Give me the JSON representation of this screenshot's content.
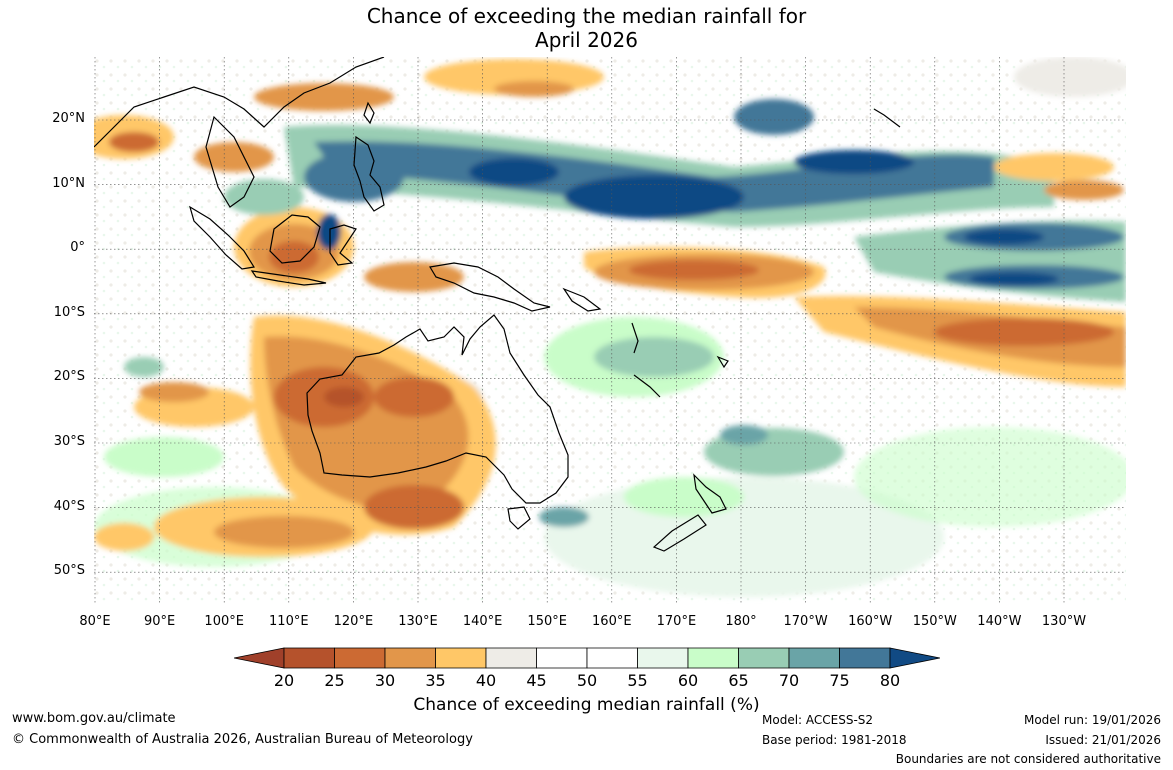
{
  "title": {
    "line1": "Chance of exceeding the median rainfall for",
    "line2": "April 2026"
  },
  "lat_labels": [
    "20°N",
    "10°N",
    "0°",
    "10°S",
    "20°S",
    "30°S",
    "40°S",
    "50°S"
  ],
  "lon_labels": [
    "80°E",
    "90°E",
    "100°E",
    "110°E",
    "120°E",
    "130°E",
    "140°E",
    "150°E",
    "160°E",
    "170°E",
    "180°",
    "170°W",
    "160°W",
    "150°W",
    "140°W",
    "130°W"
  ],
  "colorbar": {
    "ticks": [
      "20",
      "25",
      "30",
      "35",
      "40",
      "45",
      "50",
      "55",
      "60",
      "65",
      "70",
      "75",
      "80"
    ],
    "colors": [
      "#a0402a",
      "#b5522c",
      "#cc6a33",
      "#e2964a",
      "#ffc767",
      "#eeece7",
      "#ffffff",
      "#ffffff",
      "#e9f7ec",
      "#c9fdc9",
      "#99cdb4",
      "#6aa4a7",
      "#427798",
      "#114a84"
    ],
    "label": "Chance of exceeding median rainfall (%)"
  },
  "footer": {
    "website": "www.bom.gov.au/climate",
    "copyright": "© Commonwealth of Australia 2026, Australian Bureau of Meteorology",
    "model": "Model: ACCESS-S2",
    "base_period": "Base period: 1981-2018",
    "model_run": "Model run: 19/01/2026",
    "issued": "Issued: 21/01/2026",
    "disclaimer": "Boundaries are not considered authoritative"
  },
  "map_regions": [
    {
      "name": "tropical-north-pacific-wet",
      "percent": 75
    },
    {
      "name": "central-pacific-wet-core",
      "percent": 80
    },
    {
      "name": "equatorial-pacific-dry",
      "percent": 30
    },
    {
      "name": "south-pacific-dry-band",
      "percent": 25
    },
    {
      "name": "western-australia-dry",
      "percent": 25
    },
    {
      "name": "southeast-australia-dry",
      "percent": 30
    },
    {
      "name": "indonesia-dry",
      "percent": 30
    },
    {
      "name": "southwest-pacific-wet",
      "percent": 70
    }
  ]
}
